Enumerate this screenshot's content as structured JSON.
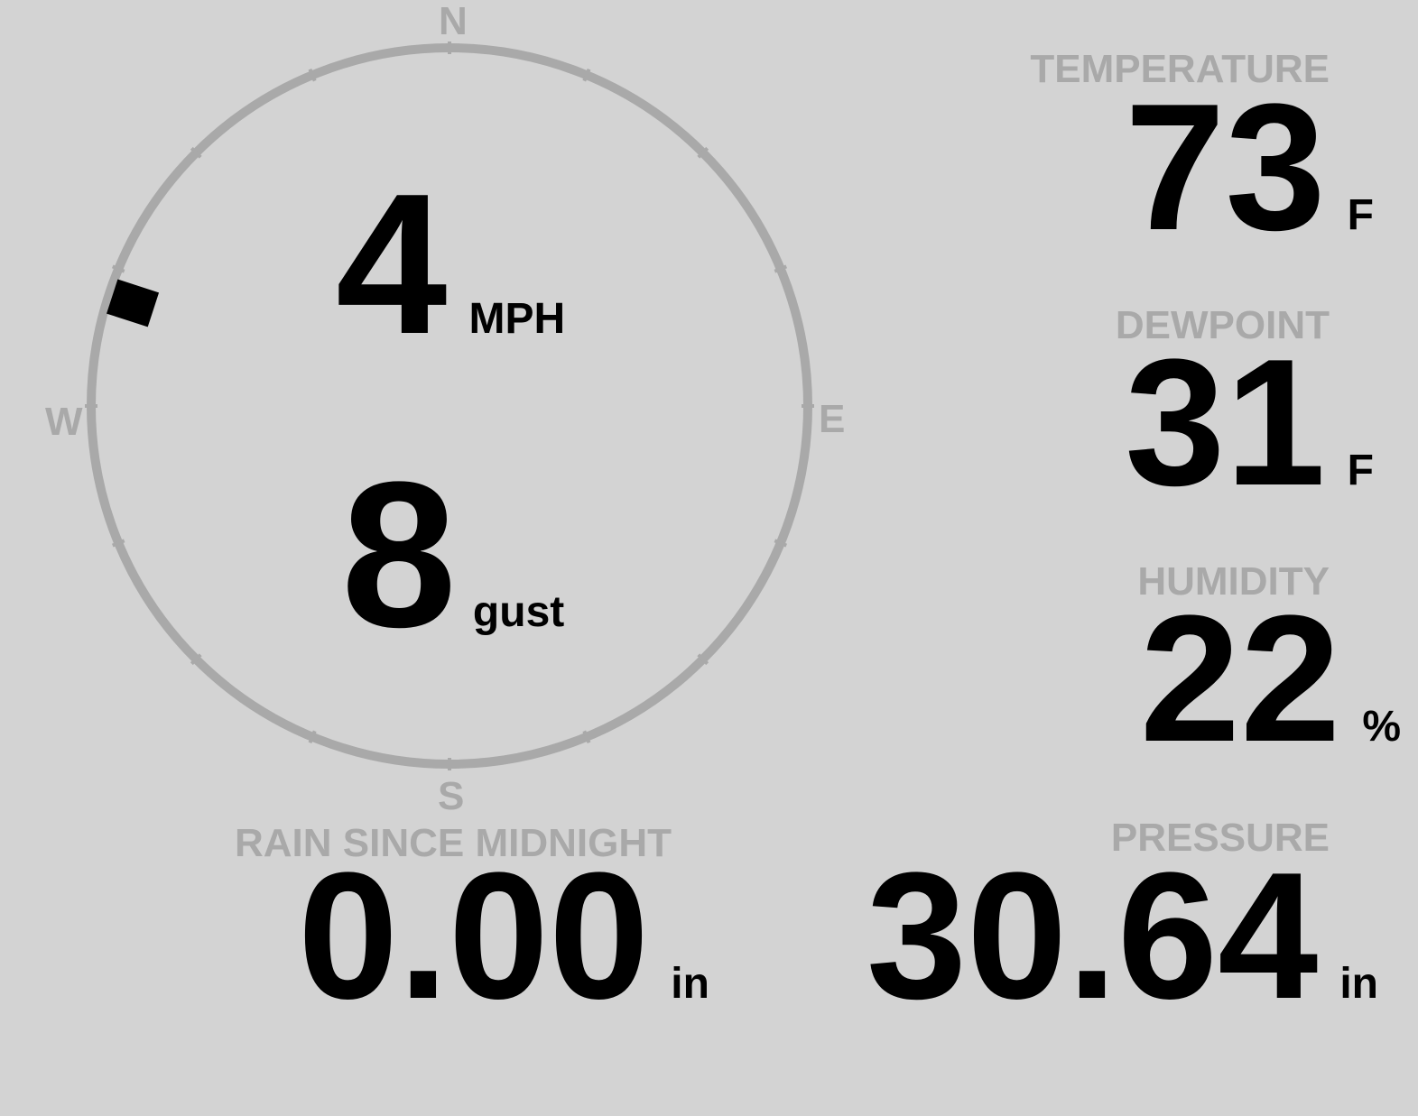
{
  "compass": {
    "north": "N",
    "south": "S",
    "east": "E",
    "west": "W",
    "wind_direction_deg": 288,
    "ring_color": "#a9a9a9"
  },
  "wind": {
    "speed": "4",
    "speed_unit": "MPH",
    "gust": "8",
    "gust_unit": "gust"
  },
  "temperature": {
    "label": "TEMPERATURE",
    "value": "73",
    "unit": "F"
  },
  "dewpoint": {
    "label": "DEWPOINT",
    "value": "31",
    "unit": "F"
  },
  "humidity": {
    "label": "HUMIDITY",
    "value": "22",
    "unit": "%"
  },
  "rain": {
    "label": "RAIN SINCE MIDNIGHT",
    "value": "0.00",
    "unit": "in"
  },
  "pressure": {
    "label": "PRESSURE",
    "value": "30.64",
    "unit": "in"
  }
}
